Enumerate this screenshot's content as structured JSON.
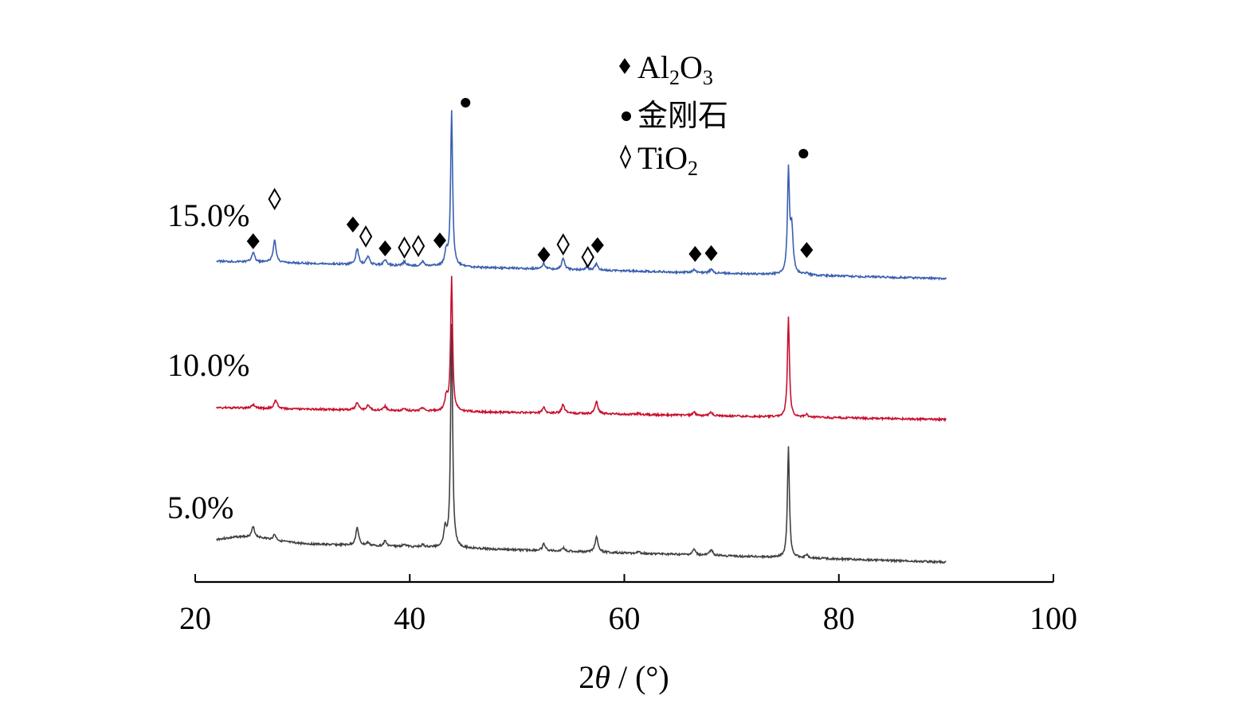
{
  "chart_data": {
    "type": "line",
    "xlabel_prefix": "2",
    "xlabel_theta": "θ",
    "xlabel_suffix": " / (°)",
    "xlim": [
      20,
      100
    ],
    "xticks": [
      20,
      40,
      60,
      80,
      100
    ],
    "xtick_labels": [
      "20",
      "40",
      "60",
      "80",
      "100"
    ],
    "grid": false,
    "legend_position": "top-center",
    "series": [
      {
        "name": "5.0%",
        "color": "#404040",
        "x_range": [
          22,
          90
        ],
        "peaks": [
          [
            25.4,
            0.9
          ],
          [
            27.4,
            0.5
          ],
          [
            35.1,
            1.6
          ],
          [
            36.1,
            0.25
          ],
          [
            37.7,
            0.45
          ],
          [
            39.5,
            0.25
          ],
          [
            41.2,
            0.2
          ],
          [
            43.3,
            1.6
          ],
          [
            43.9,
            20
          ],
          [
            52.5,
            0.6
          ],
          [
            54.3,
            0.3
          ],
          [
            57.4,
            1.4
          ],
          [
            61.3,
            0.15
          ],
          [
            66.5,
            0.5
          ],
          [
            68.1,
            0.55
          ],
          [
            75.3,
            10
          ],
          [
            77.0,
            0.3
          ]
        ]
      },
      {
        "name": "10.0%",
        "color": "#c8102e",
        "x_range": [
          22,
          90
        ],
        "peaks": [
          [
            25.4,
            0.35
          ],
          [
            27.5,
            0.8
          ],
          [
            35.1,
            0.7
          ],
          [
            36.1,
            0.45
          ],
          [
            37.7,
            0.35
          ],
          [
            39.5,
            0.2
          ],
          [
            41.2,
            0.3
          ],
          [
            43.4,
            1.2
          ],
          [
            43.9,
            12
          ],
          [
            52.5,
            0.5
          ],
          [
            54.3,
            0.8
          ],
          [
            57.4,
            1.1
          ],
          [
            61.3,
            0.1
          ],
          [
            66.5,
            0.3
          ],
          [
            68.1,
            0.3
          ],
          [
            75.3,
            9
          ],
          [
            77.0,
            0.25
          ]
        ]
      },
      {
        "name": "15.0%",
        "color": "#3a5fb0",
        "x_range": [
          22,
          90
        ],
        "peaks": [
          [
            25.4,
            0.9
          ],
          [
            27.4,
            2.0
          ],
          [
            35.1,
            1.4
          ],
          [
            36.1,
            0.8
          ],
          [
            37.7,
            0.5
          ],
          [
            39.5,
            0.35
          ],
          [
            41.2,
            0.4
          ],
          [
            43.4,
            1.3
          ],
          [
            43.9,
            14
          ],
          [
            52.5,
            0.5
          ],
          [
            54.3,
            1.0
          ],
          [
            56.5,
            0.25
          ],
          [
            57.4,
            0.6
          ],
          [
            66.5,
            0.3
          ],
          [
            68.1,
            0.35
          ],
          [
            75.3,
            9
          ],
          [
            75.6,
            4
          ],
          [
            77.0,
            0.2
          ]
        ]
      }
    ],
    "annotations": [
      {
        "series": "15.0%",
        "marker": "filled-diamond",
        "x": 25.4
      },
      {
        "series": "15.0%",
        "marker": "open-diamond",
        "x": 27.4
      },
      {
        "series": "15.0%",
        "marker": "filled-diamond",
        "x": 34.7
      },
      {
        "series": "15.0%",
        "marker": "open-diamond",
        "x": 35.9
      },
      {
        "series": "15.0%",
        "marker": "filled-diamond",
        "x": 37.7
      },
      {
        "series": "15.0%",
        "marker": "open-diamond",
        "x": 39.5
      },
      {
        "series": "15.0%",
        "marker": "open-diamond",
        "x": 40.8
      },
      {
        "series": "15.0%",
        "marker": "filled-diamond",
        "x": 42.8
      },
      {
        "series": "15.0%",
        "marker": "filled-circle",
        "x": 45.2
      },
      {
        "series": "15.0%",
        "marker": "filled-diamond",
        "x": 52.5
      },
      {
        "series": "15.0%",
        "marker": "open-diamond",
        "x": 54.3
      },
      {
        "series": "15.0%",
        "marker": "open-diamond",
        "x": 56.6
      },
      {
        "series": "15.0%",
        "marker": "filled-diamond",
        "x": 57.5
      },
      {
        "series": "15.0%",
        "marker": "filled-diamond",
        "x": 66.6
      },
      {
        "series": "15.0%",
        "marker": "filled-diamond",
        "x": 68.1
      },
      {
        "series": "15.0%",
        "marker": "filled-circle",
        "x": 76.7
      },
      {
        "series": "15.0%",
        "marker": "filled-diamond",
        "x": 77.0
      }
    ],
    "legend": [
      {
        "marker": "filled-diamond",
        "base": "Al",
        "sub1": "2",
        "mid": "O",
        "sub2": "3"
      },
      {
        "marker": "filled-circle",
        "base": "金刚石"
      },
      {
        "marker": "open-diamond",
        "base": "TiO",
        "sub1": "2"
      }
    ]
  }
}
